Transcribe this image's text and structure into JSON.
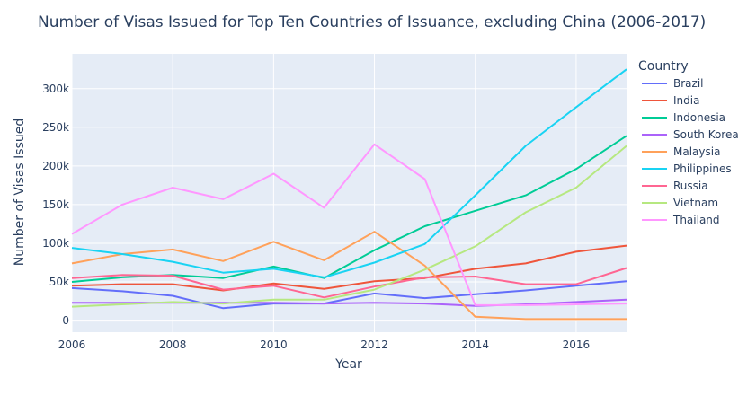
{
  "chart_data": {
    "type": "line",
    "title": "Number of Visas Issued for Top Ten Countries of Issuance, excluding China (2006-2017)",
    "xlabel": "Year",
    "ylabel": "Number of Visas Issued",
    "legend_title": "Country",
    "legend_position": "right",
    "grid": true,
    "xlim": [
      2006,
      2017
    ],
    "ylim": [
      -15000,
      345000
    ],
    "x_ticks": [
      2006,
      2008,
      2010,
      2012,
      2014,
      2016
    ],
    "x_tick_labels": [
      "2006",
      "2008",
      "2010",
      "2012",
      "2014",
      "2016"
    ],
    "y_ticks": [
      0,
      50000,
      100000,
      150000,
      200000,
      250000,
      300000
    ],
    "y_tick_labels": [
      "0",
      "50k",
      "100k",
      "150k",
      "200k",
      "250k",
      "300k"
    ],
    "x": [
      2006,
      2007,
      2008,
      2009,
      2010,
      2011,
      2012,
      2013,
      2014,
      2015,
      2016,
      2017
    ],
    "series": [
      {
        "name": "Brazil",
        "color": "#636efa",
        "values": [
          42000,
          38000,
          32000,
          16000,
          22000,
          22000,
          35000,
          29000,
          34000,
          39000,
          45000,
          51000
        ]
      },
      {
        "name": "India",
        "color": "#EF553B",
        "values": [
          45000,
          47000,
          47000,
          39000,
          48000,
          41000,
          51000,
          55000,
          67000,
          74000,
          89000,
          97000
        ]
      },
      {
        "name": "Indonesia",
        "color": "#00cc96",
        "values": [
          50000,
          56000,
          59000,
          55000,
          70000,
          55000,
          91000,
          122000,
          142000,
          162000,
          196000,
          239000
        ]
      },
      {
        "name": "South Korea",
        "color": "#ab63fa",
        "values": [
          23000,
          23000,
          23000,
          23000,
          23000,
          22000,
          23000,
          22000,
          19000,
          21000,
          24000,
          27000
        ]
      },
      {
        "name": "Malaysia",
        "color": "#FFA15A",
        "values": [
          74000,
          86000,
          92000,
          77000,
          102000,
          78000,
          115000,
          71000,
          5000,
          2000,
          2000,
          2000
        ]
      },
      {
        "name": "Philippines",
        "color": "#19d3f3",
        "values": [
          94000,
          86000,
          76000,
          62000,
          67000,
          56000,
          75000,
          99000,
          162000,
          226000,
          276000,
          325000
        ]
      },
      {
        "name": "Russia",
        "color": "#FF6692",
        "values": [
          55000,
          59000,
          58000,
          40000,
          45000,
          30000,
          44000,
          56000,
          57000,
          47000,
          47000,
          68000
        ]
      },
      {
        "name": "Vietnam",
        "color": "#B6E880",
        "values": [
          18000,
          21000,
          24000,
          22000,
          27000,
          27000,
          40000,
          66000,
          96000,
          140000,
          172000,
          226000
        ]
      },
      {
        "name": "Thailand",
        "color": "#FF97FF",
        "values": [
          112000,
          150000,
          172000,
          157000,
          190000,
          146000,
          228000,
          183000,
          20000,
          20000,
          21000,
          22000
        ]
      }
    ]
  }
}
